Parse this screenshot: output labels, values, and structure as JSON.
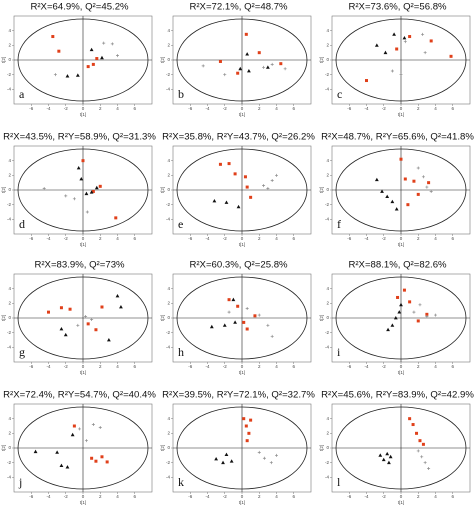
{
  "chart_data": [
    {
      "type": "scatter",
      "title": "R²X=64.9%, Q²=45.2%",
      "label": "a",
      "xlabel": "t[1]",
      "ylabel": "t[2]",
      "xlim": [
        -8,
        8
      ],
      "ylim": [
        -6,
        6
      ],
      "xticks": [
        -6,
        -4,
        -2,
        0,
        2,
        4,
        6
      ],
      "yticks": [
        -4,
        -2,
        0,
        2,
        4
      ],
      "series": [
        {
          "color": "#e0401a",
          "marker": "square",
          "x": [
            -3.5,
            -2.8,
            0.6,
            1.2,
            1.6
          ],
          "y": [
            3.2,
            1.2,
            -0.9,
            -0.6,
            0.2
          ]
        },
        {
          "color": "#111111",
          "marker": "triangle",
          "x": [
            -1.8,
            -0.6,
            1.0,
            2.2
          ],
          "y": [
            -2.2,
            -2.1,
            1.4,
            0.3
          ]
        },
        {
          "color": "#8a8a8a",
          "marker": "plus",
          "x": [
            -3.2,
            2.4,
            3.4,
            4.0
          ],
          "y": [
            -2.0,
            2.3,
            2.2,
            0.6
          ]
        }
      ]
    },
    {
      "type": "scatter",
      "title": "R²X=72.1%, Q²=48.7%",
      "label": "b",
      "xlabel": "t[1]",
      "ylabel": "t[2]",
      "xlim": [
        -8,
        8
      ],
      "ylim": [
        -6,
        6
      ],
      "xticks": [
        -6,
        -4,
        -2,
        0,
        2,
        4,
        6
      ],
      "yticks": [
        -4,
        -2,
        0,
        2,
        4
      ],
      "series": [
        {
          "color": "#e0401a",
          "marker": "square",
          "x": [
            -2.5,
            0.5,
            2.0,
            4.5,
            -0.5
          ],
          "y": [
            -0.2,
            3.5,
            1.0,
            -0.5,
            -1.8
          ]
        },
        {
          "color": "#111111",
          "marker": "triangle",
          "x": [
            -0.2,
            0.8,
            0.6,
            3.0
          ],
          "y": [
            -1.2,
            -1.5,
            0.8,
            -1.0
          ]
        },
        {
          "color": "#8a8a8a",
          "marker": "plus",
          "x": [
            -4.5,
            -2.0,
            2.5,
            3.5,
            5.0
          ],
          "y": [
            -0.8,
            -2.0,
            -1.0,
            -0.6,
            -1.2
          ]
        }
      ]
    },
    {
      "type": "scatter",
      "title": "R²X=73.6%, Q²=56.8%",
      "label": "c",
      "xlabel": "t[1]",
      "ylabel": "t[2]",
      "xlim": [
        -8,
        8
      ],
      "ylim": [
        -6,
        6
      ],
      "xticks": [
        -6,
        -4,
        -2,
        0,
        2,
        4,
        6
      ],
      "yticks": [
        -4,
        -2,
        0,
        2,
        4
      ],
      "series": [
        {
          "color": "#e0401a",
          "marker": "square",
          "x": [
            -4.0,
            -0.5,
            1.0,
            3.5,
            5.8
          ],
          "y": [
            -2.8,
            1.5,
            3.2,
            2.6,
            0.5
          ]
        },
        {
          "color": "#111111",
          "marker": "triangle",
          "x": [
            -2.8,
            -1.8,
            -0.8,
            0.4
          ],
          "y": [
            2.0,
            1.0,
            3.5,
            3.0
          ]
        },
        {
          "color": "#8a8a8a",
          "marker": "plus",
          "x": [
            -1.0,
            0.0,
            0.5,
            2.5,
            2.8
          ],
          "y": [
            -1.5,
            -2.0,
            2.5,
            3.5,
            1.0
          ]
        }
      ]
    },
    {
      "type": "scatter",
      "title": "R²X=43.5%, R²Y=58.9%, Q²=31.3%",
      "label": "d",
      "xlabel": "t[1]",
      "ylabel": "t[2]",
      "xlim": [
        -8,
        8
      ],
      "ylim": [
        -6,
        6
      ],
      "xticks": [
        -6,
        -4,
        -2,
        0,
        2,
        4,
        6
      ],
      "yticks": [
        -4,
        -2,
        0,
        2,
        4
      ],
      "series": [
        {
          "color": "#e0401a",
          "marker": "square",
          "x": [
            0.0,
            1.2,
            2.0,
            3.8
          ],
          "y": [
            4.0,
            -0.2,
            0.5,
            -3.8
          ]
        },
        {
          "color": "#111111",
          "marker": "triangle",
          "x": [
            -0.5,
            -0.2,
            0.4,
            1.0,
            1.6
          ],
          "y": [
            3.0,
            1.5,
            -0.5,
            -0.3,
            0.3
          ]
        },
        {
          "color": "#8a8a8a",
          "marker": "plus",
          "x": [
            -4.5,
            -2.0,
            -1.0,
            0.5
          ],
          "y": [
            0.2,
            -0.8,
            -1.2,
            -3.0
          ]
        }
      ]
    },
    {
      "type": "scatter",
      "title": "R²X=35.8%, R²Y=43.7%, Q²=26.2%",
      "label": "e",
      "xlabel": "t[1]",
      "ylabel": "t[2]",
      "xlim": [
        -8,
        8
      ],
      "ylim": [
        -6,
        6
      ],
      "xticks": [
        -6,
        -4,
        -2,
        0,
        2,
        4,
        6
      ],
      "yticks": [
        -4,
        -2,
        0,
        2,
        4
      ],
      "series": [
        {
          "color": "#e0401a",
          "marker": "square",
          "x": [
            -2.5,
            -1.5,
            -0.8,
            0.4,
            1.0,
            0.6
          ],
          "y": [
            3.5,
            3.6,
            2.2,
            1.8,
            -1.0,
            0.4
          ]
        },
        {
          "color": "#111111",
          "marker": "triangle",
          "x": [
            -3.2,
            -1.8,
            -0.4
          ],
          "y": [
            -1.5,
            -1.7,
            -2.3
          ]
        },
        {
          "color": "#8a8a8a",
          "marker": "plus",
          "x": [
            2.5,
            3.5,
            4.0,
            3.0
          ],
          "y": [
            0.6,
            1.3,
            2.0,
            0.2
          ]
        }
      ]
    },
    {
      "type": "scatter",
      "title": "R²X=48.7%, R²Y=65.6%, Q²=41.8%",
      "label": "f",
      "xlabel": "t[1]",
      "ylabel": "t[2]",
      "xlim": [
        -8,
        8
      ],
      "ylim": [
        -6,
        6
      ],
      "xticks": [
        -6,
        -4,
        -2,
        0,
        2,
        4,
        6
      ],
      "yticks": [
        -4,
        -2,
        0,
        2,
        4
      ],
      "series": [
        {
          "color": "#e0401a",
          "marker": "square",
          "x": [
            0.0,
            0.5,
            1.5,
            2.0,
            0.8,
            3.2
          ],
          "y": [
            4.2,
            1.5,
            1.2,
            -0.6,
            -2.0,
            1.0
          ]
        },
        {
          "color": "#111111",
          "marker": "triangle",
          "x": [
            -2.8,
            -2.2,
            -1.6,
            -1.0,
            -0.5
          ],
          "y": [
            1.4,
            -0.2,
            -0.9,
            -1.6,
            -2.6
          ]
        },
        {
          "color": "#8a8a8a",
          "marker": "plus",
          "x": [
            2.0,
            2.6,
            3.0,
            3.5
          ],
          "y": [
            3.0,
            1.8,
            0.4,
            -0.2
          ]
        }
      ]
    },
    {
      "type": "scatter",
      "title": "R²X=83.9%, Q²=73%",
      "label": "g",
      "xlabel": "t[1]",
      "ylabel": "t[2]",
      "xlim": [
        -8,
        8
      ],
      "ylim": [
        -6,
        6
      ],
      "xticks": [
        -6,
        -4,
        -2,
        0,
        2,
        4,
        6
      ],
      "yticks": [
        -4,
        -2,
        0,
        2,
        4
      ],
      "series": [
        {
          "color": "#e0401a",
          "marker": "square",
          "x": [
            -4.0,
            -2.5,
            -1.5,
            0.6,
            1.5,
            2.2
          ],
          "y": [
            0.8,
            1.4,
            1.2,
            -0.8,
            -1.6,
            1.5
          ]
        },
        {
          "color": "#111111",
          "marker": "triangle",
          "x": [
            -2.5,
            -2.0,
            4.0,
            4.4,
            3.0
          ],
          "y": [
            -1.5,
            -2.3,
            3.0,
            1.5,
            -3.0
          ]
        },
        {
          "color": "#8a8a8a",
          "marker": "plus",
          "x": [
            -0.6,
            0.3,
            1.0
          ],
          "y": [
            -1.0,
            0.2,
            -0.2
          ]
        }
      ]
    },
    {
      "type": "scatter",
      "title": "R²X=60.3%, Q²=25.8%",
      "label": "h",
      "xlabel": "t[1]",
      "ylabel": "t[2]",
      "xlim": [
        -8,
        8
      ],
      "ylim": [
        -6,
        6
      ],
      "xticks": [
        -6,
        -4,
        -2,
        0,
        2,
        4,
        6
      ],
      "yticks": [
        -4,
        -2,
        0,
        2,
        4
      ],
      "series": [
        {
          "color": "#e0401a",
          "marker": "square",
          "x": [
            -0.5,
            0.2,
            0.6,
            -1.5,
            1.5
          ],
          "y": [
            1.6,
            -0.6,
            -1.5,
            2.5,
            0.3
          ]
        },
        {
          "color": "#111111",
          "marker": "triangle",
          "x": [
            -3.5,
            -2.0,
            -0.8,
            -1.0
          ],
          "y": [
            -1.2,
            -1.0,
            -0.6,
            2.5
          ]
        },
        {
          "color": "#8a8a8a",
          "marker": "plus",
          "x": [
            -1.5,
            0.6,
            2.0,
            3.0,
            3.5
          ],
          "y": [
            0.8,
            1.3,
            0.4,
            -1.0,
            -2.5
          ]
        }
      ]
    },
    {
      "type": "scatter",
      "title": "R²X=88.1%, Q²=82.6%",
      "label": "i",
      "xlabel": "t[1]",
      "ylabel": "t[2]",
      "xlim": [
        -8,
        8
      ],
      "ylim": [
        -6,
        6
      ],
      "xticks": [
        -6,
        -4,
        -2,
        0,
        2,
        4,
        6
      ],
      "yticks": [
        -4,
        -2,
        0,
        2,
        4
      ],
      "series": [
        {
          "color": "#e0401a",
          "marker": "square",
          "x": [
            0.4,
            1.0,
            2.0,
            3.0,
            -0.4
          ],
          "y": [
            3.8,
            2.2,
            -0.4,
            0.5,
            2.8
          ]
        },
        {
          "color": "#111111",
          "marker": "triangle",
          "x": [
            -1.5,
            -1.0,
            -0.6,
            -0.2,
            0.0
          ],
          "y": [
            -1.6,
            -1.0,
            0.0,
            0.8,
            1.8
          ]
        },
        {
          "color": "#8a8a8a",
          "marker": "plus",
          "x": [
            1.5,
            2.2,
            3.0,
            4.0
          ],
          "y": [
            0.8,
            1.8,
            0.2,
            0.4
          ]
        }
      ]
    },
    {
      "type": "scatter",
      "title": "R²X=72.4%, R²Y=54.7%, Q²=40.4%",
      "label": "j",
      "xlabel": "t[1]",
      "ylabel": "t[2]",
      "xlim": [
        -8,
        8
      ],
      "ylim": [
        -6,
        6
      ],
      "xticks": [
        -6,
        -4,
        -2,
        0,
        2,
        4,
        6
      ],
      "yticks": [
        -4,
        -2,
        0,
        2,
        4
      ],
      "series": [
        {
          "color": "#e0401a",
          "marker": "square",
          "x": [
            -1.0,
            1.0,
            1.5,
            2.2,
            2.8
          ],
          "y": [
            3.0,
            -1.4,
            -1.8,
            -1.2,
            -1.9
          ]
        },
        {
          "color": "#111111",
          "marker": "triangle",
          "x": [
            -5.5,
            -3.0,
            -2.5,
            -1.8,
            -1.2
          ],
          "y": [
            -0.5,
            -0.6,
            -2.4,
            -2.6,
            1.8
          ]
        },
        {
          "color": "#8a8a8a",
          "marker": "plus",
          "x": [
            -0.4,
            0.4,
            1.2,
            2.0
          ],
          "y": [
            2.6,
            1.0,
            3.2,
            2.8
          ]
        }
      ]
    },
    {
      "type": "scatter",
      "title": "R²X=39.5%, R²Y=72.1%, Q²=32.7%",
      "label": "k",
      "xlabel": "t[1]",
      "ylabel": "t[2]",
      "xlim": [
        -8,
        8
      ],
      "ylim": [
        -6,
        6
      ],
      "xticks": [
        -6,
        -4,
        -2,
        0,
        2,
        4,
        6
      ],
      "yticks": [
        -4,
        -2,
        0,
        2,
        4
      ],
      "series": [
        {
          "color": "#e0401a",
          "marker": "square",
          "x": [
            0.2,
            0.5,
            0.8,
            1.0,
            0.6
          ],
          "y": [
            4.0,
            3.0,
            2.0,
            3.8,
            1.0
          ]
        },
        {
          "color": "#111111",
          "marker": "triangle",
          "x": [
            -3.0,
            -2.2,
            -1.8,
            -1.2
          ],
          "y": [
            -1.5,
            -2.0,
            -0.9,
            -1.8
          ]
        },
        {
          "color": "#8a8a8a",
          "marker": "plus",
          "x": [
            2.0,
            2.6,
            3.4,
            4.0
          ],
          "y": [
            -0.6,
            -1.4,
            -2.0,
            -1.0
          ]
        }
      ]
    },
    {
      "type": "scatter",
      "title": "R²X=45.6%, R²Y=83.9%, Q²=42.9%",
      "label": "l",
      "xlabel": "t[1]",
      "ylabel": "t[2]",
      "xlim": [
        -8,
        8
      ],
      "ylim": [
        -6,
        6
      ],
      "xticks": [
        -6,
        -4,
        -2,
        0,
        2,
        4,
        6
      ],
      "yticks": [
        -4,
        -2,
        0,
        2,
        4
      ],
      "series": [
        {
          "color": "#e0401a",
          "marker": "square",
          "x": [
            1.0,
            1.4,
            1.8,
            2.2,
            2.6
          ],
          "y": [
            4.0,
            3.2,
            2.0,
            1.0,
            0.5
          ]
        },
        {
          "color": "#111111",
          "marker": "triangle",
          "x": [
            -2.4,
            -2.0,
            -1.6,
            -1.2,
            -1.4
          ],
          "y": [
            -1.0,
            -1.6,
            -0.8,
            -1.2,
            -2.0
          ]
        },
        {
          "color": "#8a8a8a",
          "marker": "plus",
          "x": [
            2.0,
            2.4,
            2.8,
            3.2
          ],
          "y": [
            -0.4,
            -1.2,
            -2.0,
            -2.8
          ]
        }
      ]
    }
  ]
}
